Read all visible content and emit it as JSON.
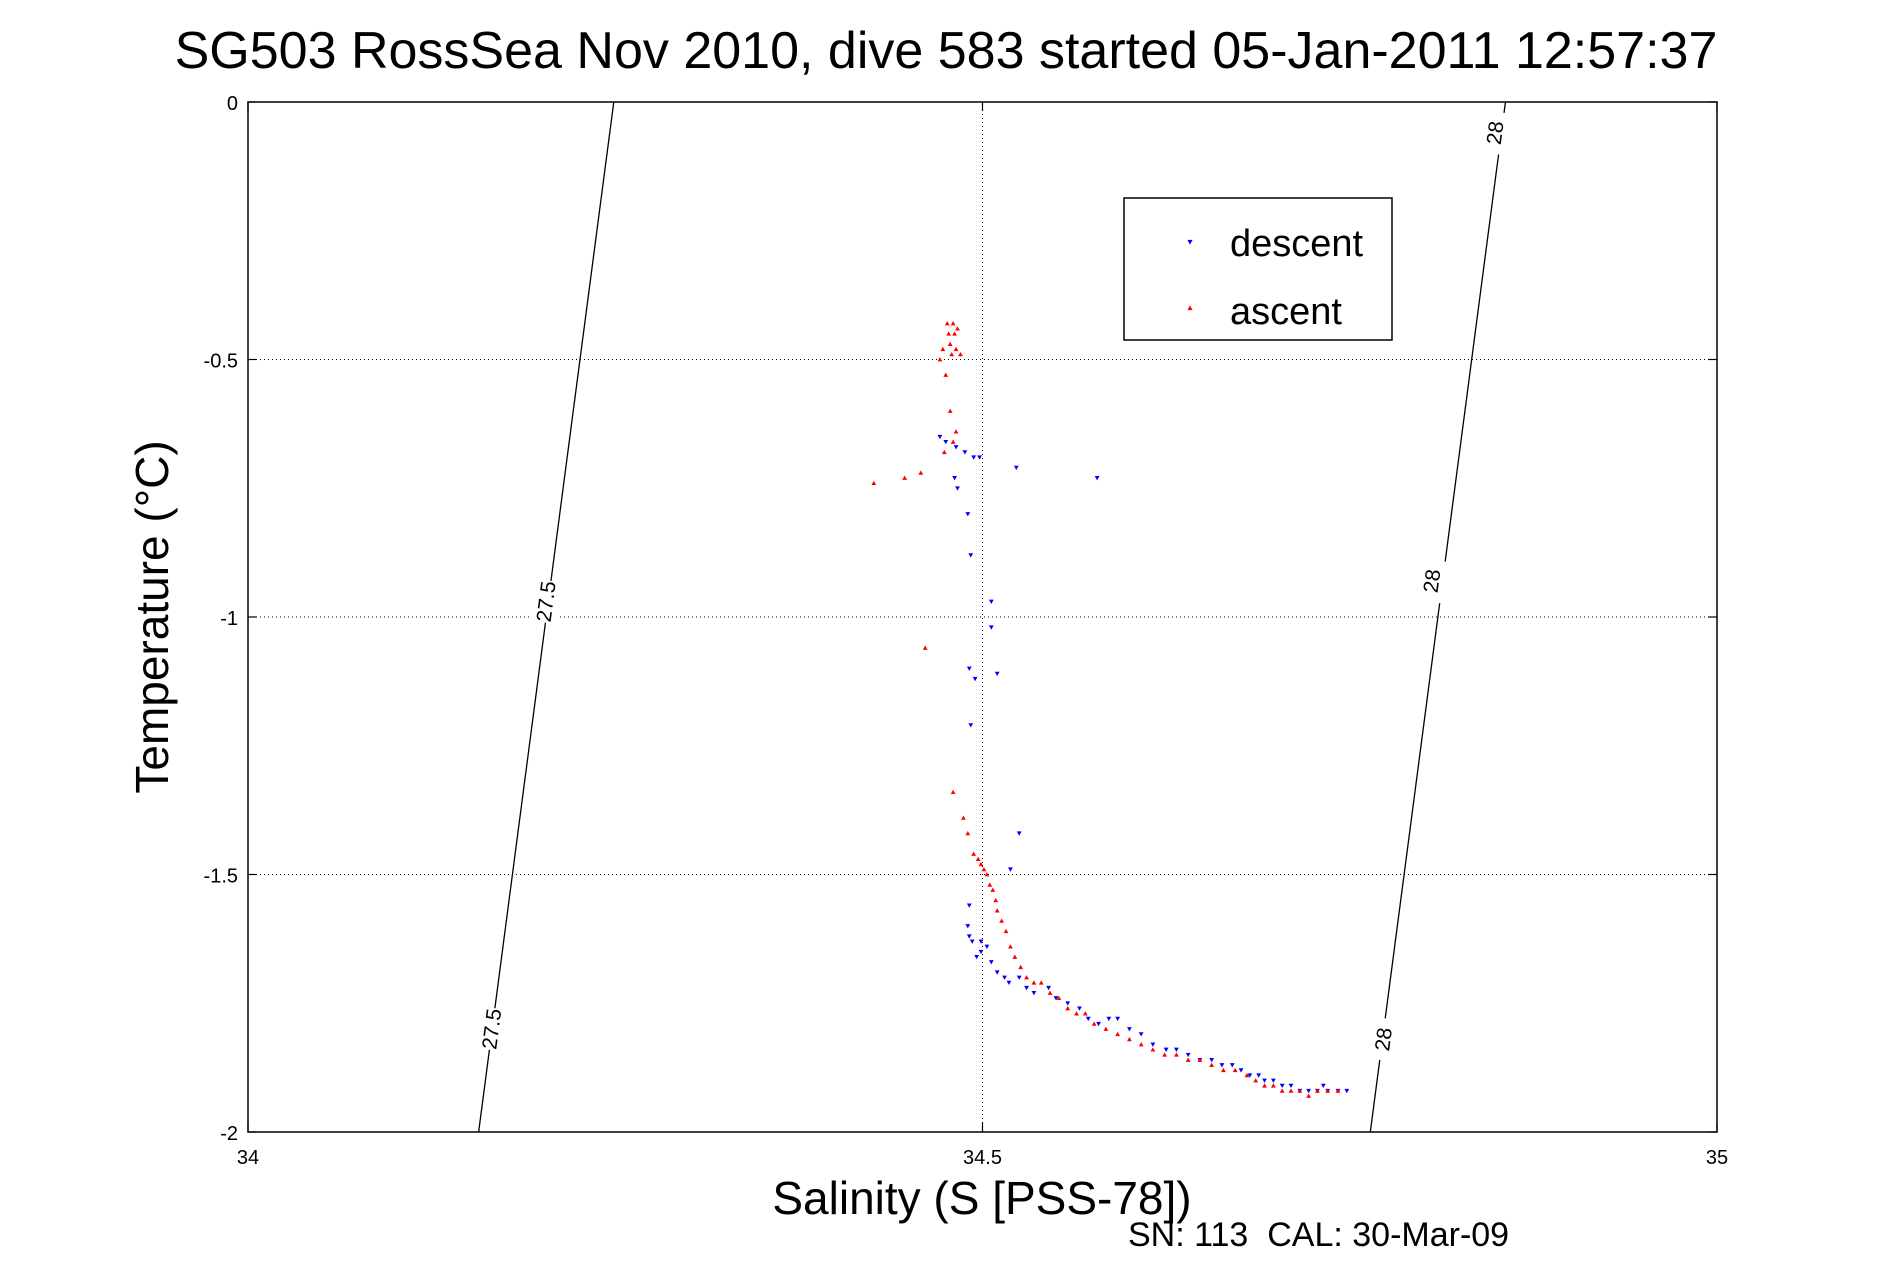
{
  "chart_data": {
    "type": "scatter",
    "title": "SG503 RossSea Nov 2010, dive 583 started 05-Jan-2011 12:57:37",
    "xlabel": "Salinity (S [PSS-78])",
    "ylabel": "Temperature (°C)",
    "xlim": [
      34,
      35
    ],
    "ylim": [
      -2,
      0
    ],
    "xticks": [
      "34",
      "34.5",
      "35"
    ],
    "yticks": [
      "0",
      "-0.5",
      "-1",
      "-1.5",
      "-2"
    ],
    "grid": true,
    "legend_position": "top-right",
    "footer": "SN: 113  CAL: 30-Mar-09",
    "contours": [
      {
        "level": "27.5",
        "points": [
          [
            34.249,
            0.0
          ],
          [
            34.157,
            -2.0
          ]
        ],
        "labels": [
          {
            "s": 34.203,
            "t": -0.97
          },
          {
            "s": 34.166,
            "t": -1.8
          }
        ]
      },
      {
        "level": "28",
        "points": [
          [
            34.856,
            0.0
          ],
          [
            34.764,
            -2.0
          ]
        ],
        "labels": [
          {
            "s": 34.849,
            "t": -0.06
          },
          {
            "s": 34.806,
            "t": -0.93
          },
          {
            "s": 34.773,
            "t": -1.82
          }
        ]
      }
    ],
    "series": [
      {
        "name": "descent",
        "color": "#0000ff",
        "marker": "triangle-down",
        "points": [
          [
            34.471,
            -0.65
          ],
          [
            34.475,
            -0.66
          ],
          [
            34.482,
            -0.67
          ],
          [
            34.488,
            -0.68
          ],
          [
            34.494,
            -0.69
          ],
          [
            34.498,
            -0.69
          ],
          [
            34.523,
            -0.71
          ],
          [
            34.578,
            -0.73
          ],
          [
            34.481,
            -0.73
          ],
          [
            34.483,
            -0.75
          ],
          [
            34.49,
            -0.8
          ],
          [
            34.492,
            -0.88
          ],
          [
            34.506,
            -0.97
          ],
          [
            34.506,
            -1.02
          ],
          [
            34.491,
            -1.1
          ],
          [
            34.495,
            -1.12
          ],
          [
            34.51,
            -1.11
          ],
          [
            34.492,
            -1.21
          ],
          [
            34.525,
            -1.42
          ],
          [
            34.519,
            -1.49
          ],
          [
            34.491,
            -1.56
          ],
          [
            34.49,
            -1.6
          ],
          [
            34.491,
            -1.62
          ],
          [
            34.493,
            -1.63
          ],
          [
            34.499,
            -1.63
          ],
          [
            34.503,
            -1.64
          ],
          [
            34.496,
            -1.66
          ],
          [
            34.499,
            -1.65
          ],
          [
            34.506,
            -1.67
          ],
          [
            34.51,
            -1.69
          ],
          [
            34.515,
            -1.7
          ],
          [
            34.518,
            -1.71
          ],
          [
            34.525,
            -1.7
          ],
          [
            34.53,
            -1.72
          ],
          [
            34.535,
            -1.73
          ],
          [
            34.545,
            -1.72
          ],
          [
            34.55,
            -1.74
          ],
          [
            34.558,
            -1.75
          ],
          [
            34.566,
            -1.76
          ],
          [
            34.572,
            -1.78
          ],
          [
            34.579,
            -1.79
          ],
          [
            34.586,
            -1.78
          ],
          [
            34.592,
            -1.78
          ],
          [
            34.6,
            -1.8
          ],
          [
            34.608,
            -1.81
          ],
          [
            34.616,
            -1.83
          ],
          [
            34.625,
            -1.84
          ],
          [
            34.632,
            -1.84
          ],
          [
            34.64,
            -1.85
          ],
          [
            34.648,
            -1.86
          ],
          [
            34.656,
            -1.86
          ],
          [
            34.663,
            -1.87
          ],
          [
            34.67,
            -1.87
          ],
          [
            34.676,
            -1.88
          ],
          [
            34.682,
            -1.89
          ],
          [
            34.688,
            -1.89
          ],
          [
            34.692,
            -1.9
          ],
          [
            34.698,
            -1.9
          ],
          [
            34.704,
            -1.91
          ],
          [
            34.71,
            -1.91
          ],
          [
            34.716,
            -1.92
          ],
          [
            34.722,
            -1.92
          ],
          [
            34.728,
            -1.92
          ],
          [
            34.735,
            -1.92
          ],
          [
            34.742,
            -1.92
          ],
          [
            34.748,
            -1.92
          ],
          [
            34.732,
            -1.91
          ]
        ]
      },
      {
        "name": "ascent",
        "color": "#ff0000",
        "marker": "triangle-up",
        "points": [
          [
            34.476,
            -0.43
          ],
          [
            34.48,
            -0.43
          ],
          [
            34.483,
            -0.44
          ],
          [
            34.477,
            -0.45
          ],
          [
            34.481,
            -0.45
          ],
          [
            34.478,
            -0.47
          ],
          [
            34.482,
            -0.48
          ],
          [
            34.485,
            -0.49
          ],
          [
            34.479,
            -0.49
          ],
          [
            34.473,
            -0.48
          ],
          [
            34.471,
            -0.5
          ],
          [
            34.475,
            -0.53
          ],
          [
            34.478,
            -0.6
          ],
          [
            34.482,
            -0.64
          ],
          [
            34.48,
            -0.66
          ],
          [
            34.474,
            -0.68
          ],
          [
            34.458,
            -0.72
          ],
          [
            34.447,
            -0.73
          ],
          [
            34.426,
            -0.74
          ],
          [
            34.461,
            -1.06
          ],
          [
            34.48,
            -1.34
          ],
          [
            34.487,
            -1.39
          ],
          [
            34.49,
            -1.42
          ],
          [
            34.494,
            -1.46
          ],
          [
            34.497,
            -1.47
          ],
          [
            34.499,
            -1.48
          ],
          [
            34.501,
            -1.49
          ],
          [
            34.503,
            -1.5
          ],
          [
            34.505,
            -1.52
          ],
          [
            34.507,
            -1.53
          ],
          [
            34.509,
            -1.55
          ],
          [
            34.51,
            -1.57
          ],
          [
            34.513,
            -1.59
          ],
          [
            34.516,
            -1.61
          ],
          [
            34.519,
            -1.64
          ],
          [
            34.522,
            -1.66
          ],
          [
            34.526,
            -1.68
          ],
          [
            34.53,
            -1.7
          ],
          [
            34.535,
            -1.71
          ],
          [
            34.54,
            -1.71
          ],
          [
            34.546,
            -1.73
          ],
          [
            34.552,
            -1.74
          ],
          [
            34.558,
            -1.76
          ],
          [
            34.564,
            -1.77
          ],
          [
            34.57,
            -1.77
          ],
          [
            34.576,
            -1.79
          ],
          [
            34.584,
            -1.8
          ],
          [
            34.592,
            -1.81
          ],
          [
            34.6,
            -1.82
          ],
          [
            34.608,
            -1.83
          ],
          [
            34.616,
            -1.84
          ],
          [
            34.624,
            -1.85
          ],
          [
            34.632,
            -1.85
          ],
          [
            34.64,
            -1.86
          ],
          [
            34.648,
            -1.86
          ],
          [
            34.656,
            -1.87
          ],
          [
            34.664,
            -1.88
          ],
          [
            34.672,
            -1.88
          ],
          [
            34.68,
            -1.89
          ],
          [
            34.686,
            -1.9
          ],
          [
            34.692,
            -1.91
          ],
          [
            34.698,
            -1.91
          ],
          [
            34.704,
            -1.92
          ],
          [
            34.71,
            -1.92
          ],
          [
            34.716,
            -1.92
          ],
          [
            34.722,
            -1.93
          ],
          [
            34.728,
            -1.92
          ],
          [
            34.735,
            -1.92
          ],
          [
            34.742,
            -1.92
          ]
        ]
      }
    ]
  }
}
